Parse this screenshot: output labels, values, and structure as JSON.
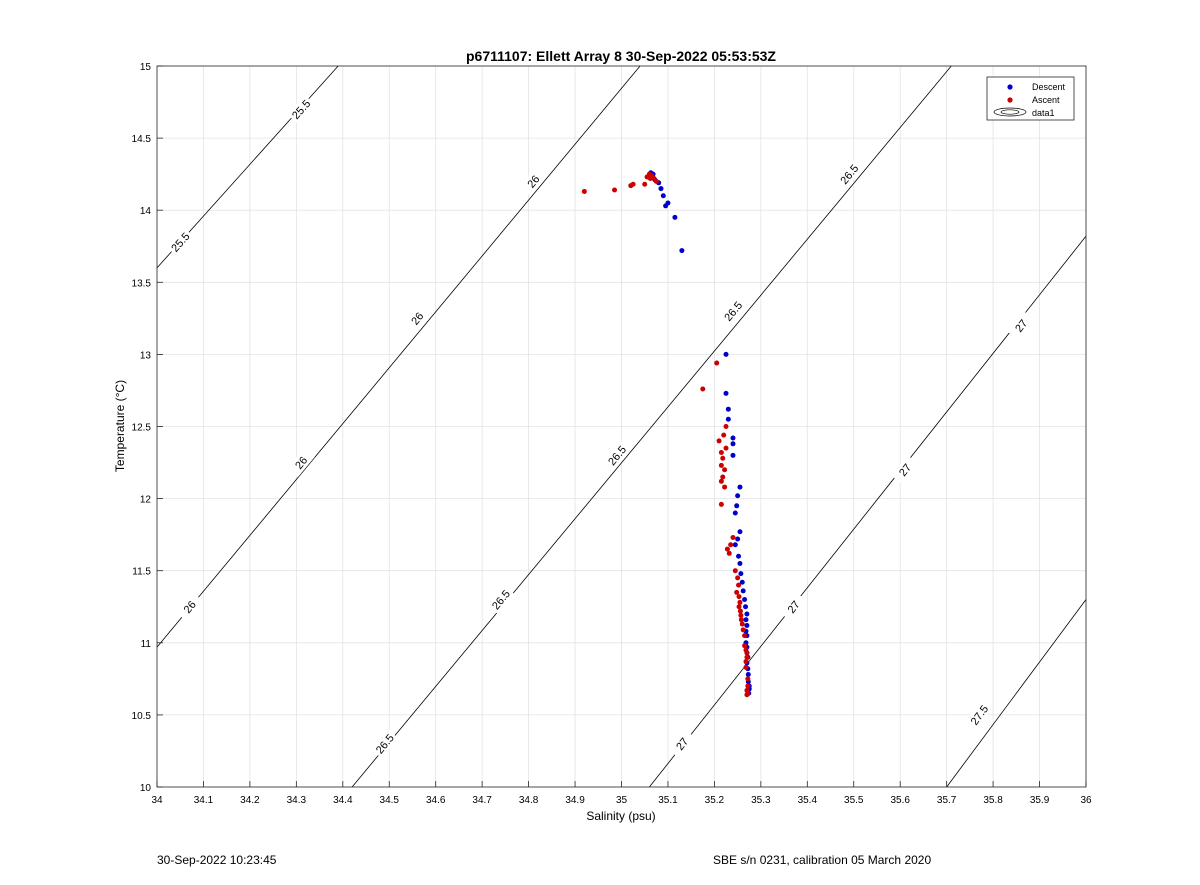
{
  "chart_data": {
    "type": "scatter",
    "title": "p6711107: Ellett Array 8 30-Sep-2022 05:53:53Z",
    "xlabel": "Salinity (psu)",
    "ylabel": "Temperature (°C)",
    "xlim": [
      34,
      36
    ],
    "ylim": [
      10,
      15
    ],
    "xticks": [
      "34",
      "34.1",
      "34.2",
      "34.3",
      "34.4",
      "34.5",
      "34.6",
      "34.7",
      "34.8",
      "34.9",
      "35",
      "35.1",
      "35.2",
      "35.3",
      "35.4",
      "35.5",
      "35.6",
      "35.7",
      "35.8",
      "35.9",
      "36"
    ],
    "yticks": [
      "10",
      "10.5",
      "11",
      "11.5",
      "12",
      "12.5",
      "13",
      "13.5",
      "14",
      "14.5",
      "15"
    ],
    "grid": true,
    "legend_position": "top-right",
    "legend": [
      "Descent",
      "Ascent",
      "data1"
    ],
    "contours": [
      {
        "label": "25.5",
        "segment": [
          [
            34.0,
            13.6
          ],
          [
            34.39,
            15.0
          ]
        ],
        "labels_at": [
          [
            34.05,
            13.78
          ],
          [
            34.31,
            14.7
          ]
        ]
      },
      {
        "label": "26",
        "segment": [
          [
            34.0,
            10.97
          ],
          [
            35.04,
            15.0
          ]
        ],
        "labels_at": [
          [
            34.07,
            11.25
          ],
          [
            34.31,
            12.25
          ],
          [
            34.56,
            13.25
          ],
          [
            34.81,
            14.2
          ]
        ]
      },
      {
        "label": "26.5",
        "segment": [
          [
            34.42,
            10.0
          ],
          [
            35.71,
            15.0
          ]
        ],
        "labels_at": [
          [
            34.49,
            10.3
          ],
          [
            34.74,
            11.3
          ],
          [
            34.99,
            12.3
          ],
          [
            35.24,
            13.3
          ],
          [
            35.49,
            14.25
          ]
        ]
      },
      {
        "label": "27",
        "segment": [
          [
            35.06,
            10.0
          ],
          [
            36.0,
            13.82
          ]
        ],
        "labels_at": [
          [
            35.13,
            10.3
          ],
          [
            35.37,
            11.25
          ],
          [
            35.61,
            12.2
          ],
          [
            35.86,
            13.2
          ]
        ]
      },
      {
        "label": "27.5",
        "segment": [
          [
            35.7,
            10.0
          ],
          [
            36.0,
            11.3
          ]
        ],
        "labels_at": [
          [
            35.77,
            10.5
          ]
        ]
      }
    ],
    "series": [
      {
        "name": "Descent",
        "color": "#0000cc",
        "points": [
          [
            35.13,
            13.72
          ],
          [
            35.115,
            13.95
          ],
          [
            35.1,
            14.05
          ],
          [
            35.095,
            14.03
          ],
          [
            35.09,
            14.1
          ],
          [
            35.085,
            14.15
          ],
          [
            35.08,
            14.19
          ],
          [
            35.072,
            14.21
          ],
          [
            35.068,
            14.25
          ],
          [
            35.063,
            14.26
          ],
          [
            35.225,
            13.0
          ],
          [
            35.225,
            12.73
          ],
          [
            35.23,
            12.62
          ],
          [
            35.23,
            12.55
          ],
          [
            35.24,
            12.42
          ],
          [
            35.24,
            12.38
          ],
          [
            35.24,
            12.3
          ],
          [
            35.255,
            12.08
          ],
          [
            35.25,
            12.02
          ],
          [
            35.248,
            11.95
          ],
          [
            35.245,
            11.9
          ],
          [
            35.255,
            11.77
          ],
          [
            35.25,
            11.72
          ],
          [
            35.245,
            11.68
          ],
          [
            35.252,
            11.6
          ],
          [
            35.255,
            11.55
          ],
          [
            35.257,
            11.48
          ],
          [
            35.26,
            11.42
          ],
          [
            35.262,
            11.36
          ],
          [
            35.265,
            11.3
          ],
          [
            35.267,
            11.25
          ],
          [
            35.27,
            11.2
          ],
          [
            35.268,
            11.16
          ],
          [
            35.27,
            11.12
          ],
          [
            35.268,
            11.08
          ],
          [
            35.27,
            11.05
          ],
          [
            35.268,
            11.0
          ],
          [
            35.27,
            10.97
          ],
          [
            35.27,
            10.93
          ],
          [
            35.272,
            10.9
          ],
          [
            35.27,
            10.86
          ],
          [
            35.272,
            10.82
          ],
          [
            35.273,
            10.78
          ],
          [
            35.273,
            10.73
          ],
          [
            35.275,
            10.7
          ],
          [
            35.275,
            10.68
          ],
          [
            35.272,
            10.66
          ],
          [
            35.274,
            10.65
          ]
        ]
      },
      {
        "name": "Ascent",
        "color": "#cc0000",
        "points": [
          [
            34.92,
            14.13
          ],
          [
            34.985,
            14.14
          ],
          [
            35.02,
            14.17
          ],
          [
            35.025,
            14.18
          ],
          [
            35.05,
            14.18
          ],
          [
            35.055,
            14.23
          ],
          [
            35.06,
            14.25
          ],
          [
            35.062,
            14.22
          ],
          [
            35.065,
            14.24
          ],
          [
            35.07,
            14.22
          ],
          [
            35.075,
            14.2
          ],
          [
            35.205,
            12.94
          ],
          [
            35.175,
            12.76
          ],
          [
            35.225,
            12.5
          ],
          [
            35.22,
            12.44
          ],
          [
            35.21,
            12.4
          ],
          [
            35.225,
            12.35
          ],
          [
            35.215,
            12.32
          ],
          [
            35.218,
            12.28
          ],
          [
            35.215,
            12.23
          ],
          [
            35.222,
            12.2
          ],
          [
            35.218,
            12.15
          ],
          [
            35.215,
            12.12
          ],
          [
            35.222,
            12.08
          ],
          [
            35.215,
            11.96
          ],
          [
            35.24,
            11.73
          ],
          [
            35.235,
            11.68
          ],
          [
            35.228,
            11.65
          ],
          [
            35.232,
            11.62
          ],
          [
            35.245,
            11.5
          ],
          [
            35.25,
            11.45
          ],
          [
            35.252,
            11.4
          ],
          [
            35.248,
            11.35
          ],
          [
            35.253,
            11.32
          ],
          [
            35.255,
            11.28
          ],
          [
            35.253,
            11.25
          ],
          [
            35.256,
            11.22
          ],
          [
            35.257,
            11.19
          ],
          [
            35.258,
            11.16
          ],
          [
            35.26,
            11.13
          ],
          [
            35.262,
            11.09
          ],
          [
            35.265,
            11.05
          ],
          [
            35.265,
            10.98
          ],
          [
            35.268,
            10.95
          ],
          [
            35.27,
            10.93
          ],
          [
            35.27,
            10.9
          ],
          [
            35.268,
            10.87
          ],
          [
            35.268,
            10.83
          ],
          [
            35.272,
            10.75
          ],
          [
            35.272,
            10.7
          ],
          [
            35.27,
            10.67
          ],
          [
            35.272,
            10.65
          ],
          [
            35.27,
            10.64
          ]
        ]
      }
    ]
  },
  "footer": {
    "left": "30-Sep-2022 10:23:45",
    "right": "SBE s/n 0231, calibration 05 March 2020"
  }
}
